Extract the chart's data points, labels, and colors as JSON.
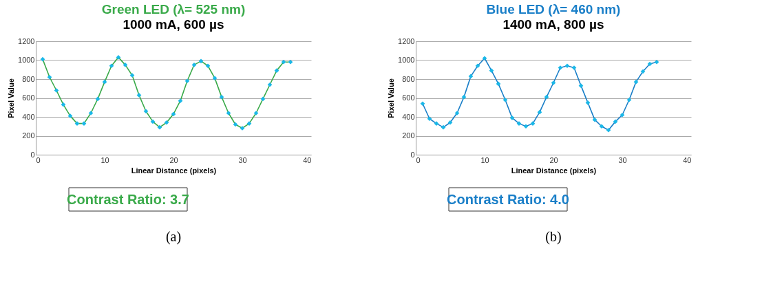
{
  "chart_data": [
    {
      "type": "line",
      "title": "Green LED (λ= 525 nm)",
      "subtitle": "1000 mA, 600 µs",
      "xlabel": "Linear Distance (pixels)",
      "ylabel": "Pixel Value",
      "x": [
        1,
        2,
        3,
        4,
        5,
        6,
        7,
        8,
        9,
        10,
        11,
        12,
        13,
        14,
        15,
        16,
        17,
        18,
        19,
        20,
        21,
        22,
        23,
        24,
        25,
        26,
        27,
        28,
        29,
        30,
        31,
        32,
        33,
        34,
        35,
        36,
        37
      ],
      "series": [
        {
          "color": "#3aaa4a",
          "colors": [
            "#1ab8e8",
            "#1ab8e8",
            "#1ab8e8",
            "#1ab8e8",
            "#1ab8e8",
            "#1ab8e8",
            "#1ab8e8",
            "#1ab8e8",
            "#1ab8e8",
            "#1ab8e8",
            "#1ab8e8",
            "#1ab8e8",
            "#1ab8e8",
            "#1ab8e8",
            "#1ab8e8",
            "#1ab8e8",
            "#1ab8e8",
            "#1ab8e8",
            "#1ab8e8",
            "#1ab8e8",
            "#1ab8e8",
            "#1ab8e8",
            "#1ab8e8",
            "#1ab8e8",
            "#1ab8e8",
            "#1ab8e8",
            "#1ab8e8",
            "#1ab8e8",
            "#1ab8e8",
            "#1ab8e8",
            "#1ab8e8",
            "#1ab8e8",
            "#1ab8e8",
            "#1ab8e8",
            "#1ab8e8",
            "#1ab8e8",
            "#1ab8e8"
          ],
          "values": [
            1010,
            820,
            680,
            530,
            410,
            330,
            330,
            440,
            590,
            770,
            940,
            1030,
            950,
            840,
            630,
            460,
            350,
            290,
            340,
            430,
            570,
            780,
            950,
            990,
            940,
            810,
            610,
            440,
            320,
            280,
            330,
            440,
            590,
            740,
            890,
            980,
            980
          ]
        }
      ],
      "xlim": [
        0,
        40
      ],
      "xticks": [
        0,
        10,
        20,
        30,
        40
      ],
      "ylim": [
        0,
        1200
      ],
      "yticks": [
        0,
        200,
        400,
        600,
        800,
        1000,
        1200
      ],
      "grid": "y",
      "marker": "diamond",
      "line_style": "solid",
      "annotations": [
        "Contrast Ratio: 3.7",
        "(a)"
      ]
    },
    {
      "type": "line",
      "title": "Blue LED (λ= 460 nm)",
      "subtitle": "1400 mA, 800 µs",
      "xlabel": "Linear Distance (pixels)",
      "ylabel": "Pixel Value",
      "x": [
        1,
        2,
        3,
        4,
        5,
        6,
        7,
        8,
        9,
        10,
        11,
        12,
        13,
        14,
        15,
        16,
        17,
        18,
        19,
        20,
        21,
        22,
        23,
        24,
        25,
        26,
        27,
        28,
        29,
        30,
        31,
        32,
        33,
        34,
        35
      ],
      "series": [
        {
          "color": "#1a7fc8",
          "colors": [
            "#1ab8e8",
            "#1ab8e8",
            "#1ab8e8",
            "#1ab8e8",
            "#1ab8e8",
            "#1ab8e8",
            "#1ab8e8",
            "#1ab8e8",
            "#1ab8e8",
            "#1ab8e8",
            "#1ab8e8",
            "#1ab8e8",
            "#1ab8e8",
            "#1ab8e8",
            "#1ab8e8",
            "#1ab8e8",
            "#1ab8e8",
            "#1ab8e8",
            "#1ab8e8",
            "#1ab8e8",
            "#1ab8e8",
            "#1ab8e8",
            "#1ab8e8",
            "#1ab8e8",
            "#1ab8e8",
            "#1ab8e8",
            "#1ab8e8",
            "#1ab8e8",
            "#1ab8e8",
            "#1ab8e8",
            "#1ab8e8",
            "#1ab8e8",
            "#1ab8e8",
            "#1ab8e8",
            "#1ab8e8"
          ],
          "values": [
            540,
            380,
            330,
            290,
            340,
            440,
            610,
            830,
            940,
            1020,
            890,
            750,
            580,
            390,
            330,
            300,
            330,
            450,
            610,
            760,
            920,
            940,
            920,
            730,
            550,
            370,
            300,
            260,
            350,
            420,
            580,
            770,
            880,
            960,
            980
          ]
        }
      ],
      "xlim": [
        0,
        40
      ],
      "xticks": [
        0,
        10,
        20,
        30,
        40
      ],
      "ylim": [
        0,
        1200
      ],
      "yticks": [
        0,
        200,
        400,
        600,
        800,
        1000,
        1200
      ],
      "grid": "y",
      "marker": "diamond",
      "line_style": "solid",
      "annotations": [
        "Contrast Ratio: 4.0",
        "(b)"
      ]
    }
  ]
}
